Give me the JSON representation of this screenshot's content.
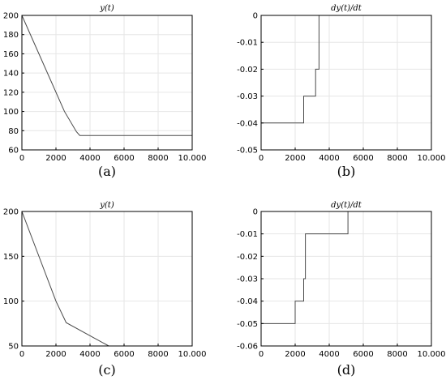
{
  "chart_data": [
    {
      "type": "line",
      "panel": "a",
      "title": "y(t)",
      "caption": "(a)",
      "xlim": [
        0,
        10000
      ],
      "ylim": [
        60,
        200
      ],
      "xticks": [
        0,
        2000,
        4000,
        6000,
        8000,
        10000
      ],
      "xtick_labels": [
        "0",
        "2000",
        "4000",
        "6000",
        "8000",
        "10.000"
      ],
      "yticks": [
        60,
        80,
        100,
        120,
        140,
        160,
        180,
        200
      ],
      "ytick_labels": [
        "60",
        "80",
        "100",
        "120",
        "140",
        "160",
        "180",
        "200"
      ],
      "grid": true,
      "series": [
        {
          "x": [
            0,
            2500,
            3200,
            3400,
            10000
          ],
          "y": [
            200,
            100,
            79,
            75,
            75
          ]
        }
      ]
    },
    {
      "type": "line",
      "panel": "b",
      "title": "dy(t)/dt",
      "caption": "(b)",
      "xlim": [
        0,
        10000
      ],
      "ylim": [
        -0.05,
        0
      ],
      "xticks": [
        0,
        2000,
        4000,
        6000,
        8000,
        10000
      ],
      "xtick_labels": [
        "0",
        "2000",
        "4000",
        "6000",
        "8000",
        "10.000"
      ],
      "yticks": [
        -0.05,
        -0.04,
        -0.03,
        -0.02,
        -0.01,
        0
      ],
      "ytick_labels": [
        "-0.05",
        "-0.04",
        "-0.03",
        "-0.02",
        "-0.01",
        "0"
      ],
      "grid": true,
      "series": [
        {
          "x": [
            0,
            2500,
            2500,
            3200,
            3200,
            3400,
            3400,
            10000
          ],
          "y": [
            -0.04,
            -0.04,
            -0.03,
            -0.03,
            -0.02,
            -0.02,
            0,
            0
          ]
        }
      ]
    },
    {
      "type": "line",
      "panel": "c",
      "title": "y(t)",
      "caption": "(c)",
      "xlim": [
        0,
        10000
      ],
      "ylim": [
        50,
        200
      ],
      "xticks": [
        0,
        2000,
        4000,
        6000,
        8000,
        10000
      ],
      "xtick_labels": [
        "0",
        "2000",
        "4000",
        "6000",
        "8000",
        "10.000"
      ],
      "yticks": [
        50,
        100,
        150,
        200
      ],
      "ytick_labels": [
        "50",
        "100",
        "150",
        "200"
      ],
      "grid": true,
      "series": [
        {
          "x": [
            0,
            2000,
            2600,
            5100
          ],
          "y": [
            200,
            100,
            76,
            50
          ]
        }
      ]
    },
    {
      "type": "line",
      "panel": "d",
      "title": "dy(t)/dt",
      "caption": "(d)",
      "xlim": [
        0,
        10000
      ],
      "ylim": [
        -0.06,
        0
      ],
      "xticks": [
        0,
        2000,
        4000,
        6000,
        8000,
        10000
      ],
      "xtick_labels": [
        "0",
        "2000",
        "4000",
        "6000",
        "8000",
        "10.000"
      ],
      "yticks": [
        -0.06,
        -0.05,
        -0.04,
        -0.03,
        -0.02,
        -0.01,
        0
      ],
      "ytick_labels": [
        "-0.06",
        "-0.05",
        "-0.04",
        "-0.03",
        "-0.02",
        "-0.01",
        "0"
      ],
      "grid": true,
      "series": [
        {
          "x": [
            0,
            2000,
            2000,
            2500,
            2500,
            2600,
            2600,
            5100,
            5100,
            10000
          ],
          "y": [
            -0.05,
            -0.05,
            -0.04,
            -0.04,
            -0.03,
            -0.03,
            -0.01,
            -0.01,
            0,
            0
          ]
        }
      ]
    }
  ]
}
